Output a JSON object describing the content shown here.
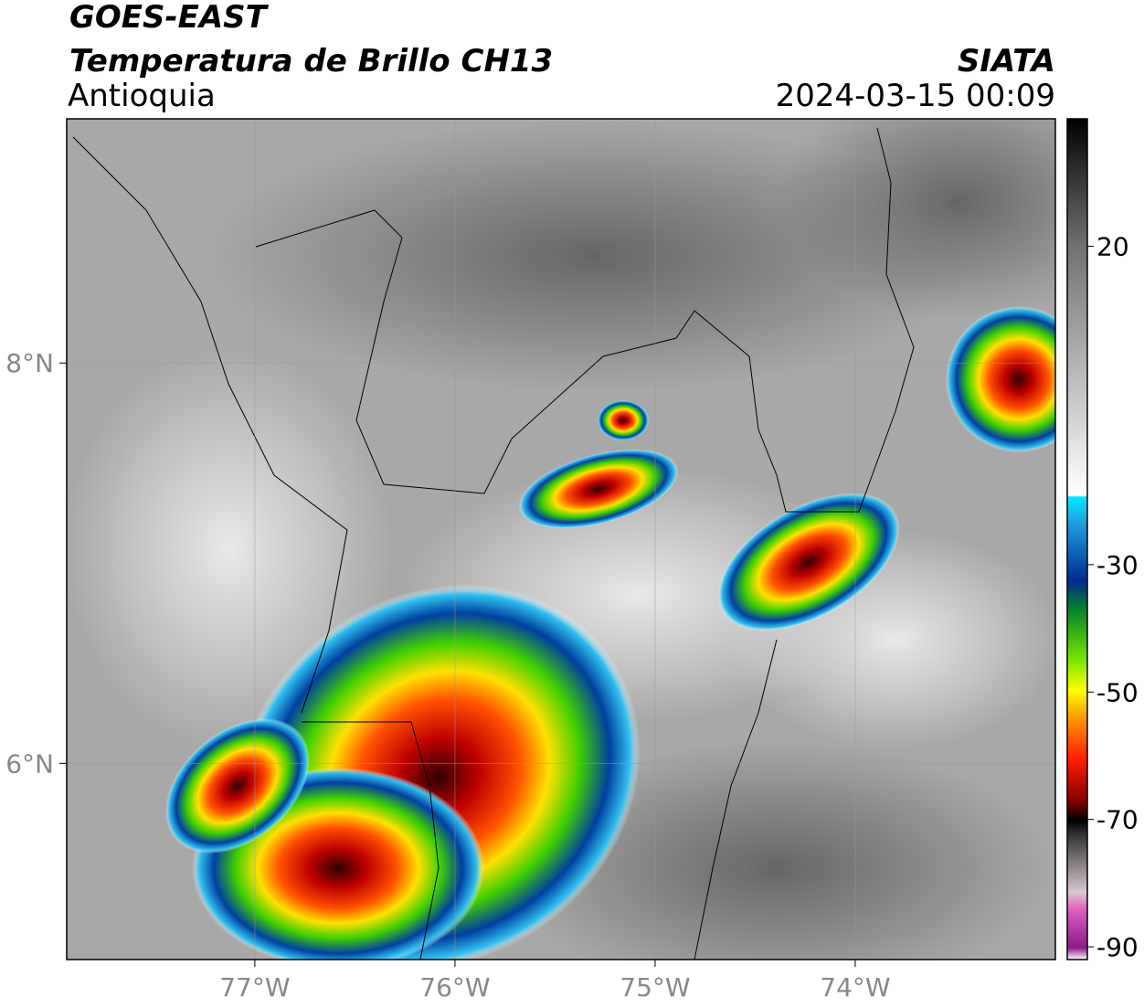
{
  "header": {
    "title": "GOES-EAST",
    "subtitle": "Temperatura de Brillo CH13",
    "region": "Antioquia",
    "source": "SIATA",
    "datetime": "2024-03-15 00:09"
  },
  "map": {
    "xlim": [
      -77.94,
      -73.0
    ],
    "ylim": [
      5.02,
      9.22
    ],
    "xticks": [
      {
        "value": -77,
        "label": "77°W"
      },
      {
        "value": -76,
        "label": "76°W"
      },
      {
        "value": -75,
        "label": "75°W"
      },
      {
        "value": -74,
        "label": "74°W"
      }
    ],
    "yticks": [
      {
        "value": 8,
        "label": "8°N"
      },
      {
        "value": 6,
        "label": "6°N"
      }
    ],
    "grid": true
  },
  "colorbar": {
    "clim": [
      -92,
      40
    ],
    "ticks": [
      20,
      -30,
      -50,
      -70,
      -90
    ]
  }
}
